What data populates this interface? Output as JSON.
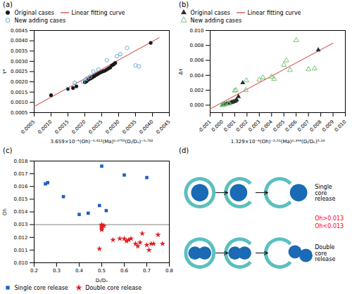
{
  "chart_data": [
    {
      "type": "scatter",
      "title": "(a)",
      "xlabel": "3.659×10⁻⁴(Oh)⁻⁰·⁶¹²(Ma)⁰·⁰⁷⁵⁵(Dᵢ/Dₒ)⁻⁰·⁷⁸²",
      "ylabel": "τ*",
      "xlim": [
        0.0005,
        0.0045
      ],
      "ylim": [
        0.0005,
        0.0045
      ],
      "xticks": [
        0.0005,
        {
          "value": 0.001,
          "label": "0.0010"
        },
        0.0015,
        {
          "value": 0.002,
          "label": "0.0020"
        },
        0.0025,
        {
          "value": 0.003,
          "label": "0.0030"
        },
        0.0035,
        {
          "value": 0.004,
          "label": "0.0040"
        },
        0.0045
      ],
      "yticks": [
        0.0005,
        {
          "value": 0.001,
          "label": "0.0010"
        },
        0.0015,
        {
          "value": 0.002,
          "label": "0.0020"
        },
        0.0025,
        {
          "value": 0.003,
          "label": "0.0030"
        },
        0.0035,
        {
          "value": 0.004,
          "label": "0.0040"
        },
        0.0045
      ],
      "legend": "upper left",
      "series": [
        {
          "name": "Original cases",
          "type": "scatter",
          "marker": "circle",
          "color": "#1a1a1a",
          "x": [
            0.001,
            0.0015,
            0.00165,
            0.00175,
            0.002,
            0.00205,
            0.0021,
            0.00215,
            0.00218,
            0.0022,
            0.00222,
            0.00225,
            0.00228,
            0.0023,
            0.00235,
            0.0024,
            0.00245,
            0.0025,
            0.00255,
            0.0026,
            0.00265,
            0.0027,
            0.00275,
            0.0028,
            0.00285,
            0.00285,
            0.0029,
            0.00395
          ],
          "values": [
            0.00135,
            0.00165,
            0.0017,
            0.00178,
            0.00198,
            0.00202,
            0.0021,
            0.00215,
            0.00218,
            0.0022,
            0.00222,
            0.00225,
            0.00228,
            0.0023,
            0.00235,
            0.0024,
            0.00245,
            0.00248,
            0.00252,
            0.00255,
            0.0026,
            0.00265,
            0.0027,
            0.0028,
            0.00285,
            0.00285,
            0.00292,
            0.0039
          ]
        },
        {
          "name": "Linear fitting curve",
          "type": "line",
          "color": "#e06060",
          "x": [
            0.0005,
            0.0042
          ],
          "values": [
            0.0008,
            0.00415
          ]
        },
        {
          "name": "New adding cases",
          "type": "scatter",
          "marker": "open_circle",
          "color": "#6baed6",
          "x": [
            0.0015,
            0.0017,
            0.00195,
            0.00205,
            0.00215,
            0.00225,
            0.0024,
            0.00265,
            0.00295,
            0.00305,
            0.00325,
            0.0035,
            0.0036
          ],
          "values": [
            0.00165,
            0.00195,
            0.002,
            0.00215,
            0.00225,
            0.0025,
            0.0026,
            0.00305,
            0.00325,
            0.00335,
            0.00365,
            0.0028,
            0.00275
          ]
        }
      ]
    },
    {
      "type": "scatter",
      "title": "(b)",
      "xlabel": "1.329×10⁻⁶(Oh)⁻²·⁵¹(Ma)⁰·³⁹⁸(Dᵢ/Dₒ)⁵·¹⁸",
      "ylabel": "Δτ",
      "xlim": [
        -0.001,
        0.01
      ],
      "ylim": [
        -0.001,
        0.01
      ],
      "xticks": [
        -0.001,
        {
          "value": 0,
          "label": "0.000"
        },
        0.001,
        0.002,
        0.003,
        0.004,
        0.005,
        0.006,
        0.007,
        0.008,
        0.009,
        {
          "value": 0.01,
          "label": "0.010"
        }
      ],
      "yticks": [
        {
          "value": 0,
          "label": "0.000"
        },
        0.002,
        0.004,
        0.006,
        0.008,
        {
          "value": 0.01,
          "label": "0.010"
        }
      ],
      "legend": "upper left",
      "series": [
        {
          "name": "Original cases",
          "type": "scatter",
          "marker": "triangle",
          "color": "#2c2c2c",
          "x": [
            0.0,
            5e-05,
            0.0001,
            0.0002,
            0.0003,
            0.0004,
            0.0005,
            0.0006,
            0.0007,
            0.0008,
            0.0009,
            0.001,
            0.0011,
            0.00115,
            0.0013,
            0.00165,
            0.0078
          ],
          "values": [
            0.0,
            3e-05,
            5e-05,
            0.0001,
            0.00015,
            0.0002,
            0.00025,
            0.0003,
            0.00035,
            0.0004,
            0.00045,
            0.0005,
            0.0006,
            0.00075,
            0.00115,
            0.003,
            0.0074
          ]
        },
        {
          "name": "Linear fitting curve",
          "type": "line",
          "color": "#e06060",
          "x": [
            -0.001,
            0.009
          ],
          "values": [
            -0.0005,
            0.0083
          ]
        },
        {
          "name": "New adding cases",
          "type": "scatter",
          "marker": "open_triangle",
          "color": "#74c476",
          "x": [
            0.0,
            0.0001,
            0.0002,
            0.0005,
            0.00055,
            0.001,
            0.0011,
            0.0019,
            0.00195,
            0.003,
            0.0033,
            0.004,
            0.0042,
            0.005,
            0.0052,
            0.0055,
            0.006,
            0.007,
            0.0075
          ],
          "values": [
            0.0,
            5e-05,
            0.00012,
            0.0002,
            0.00025,
            0.00195,
            0.002,
            0.002,
            0.0033,
            0.0034,
            0.0037,
            0.0038,
            0.0035,
            0.0054,
            0.006,
            0.0047,
            0.0087,
            0.0048,
            0.0049
          ]
        }
      ]
    },
    {
      "type": "scatter",
      "title": "(c)",
      "xlabel": "Dᵢ/Dₒ",
      "ylabel": "Oh",
      "xlim": [
        0.2,
        0.8
      ],
      "ylim": [
        0.01,
        0.018
      ],
      "xticks": [
        0.2,
        0.3,
        0.4,
        0.5,
        0.6,
        0.7,
        0.8
      ],
      "yticks": [
        {
          "value": 0.01,
          "label": "0.010"
        },
        0.011,
        0.012,
        0.013,
        0.014,
        0.015,
        0.016,
        0.017,
        0.018
      ],
      "hline": 0.013,
      "legend": "lower left",
      "series": [
        {
          "name": "Single core release",
          "type": "scatter",
          "marker": "square",
          "color": "#1f5fc4",
          "x": [
            0.25,
            0.26,
            0.33,
            0.4,
            0.44,
            0.49,
            0.5,
            0.52,
            0.6,
            0.7
          ],
          "values": [
            0.0162,
            0.0163,
            0.0152,
            0.0138,
            0.0139,
            0.0145,
            0.0176,
            0.0141,
            0.0169,
            0.0167
          ]
        },
        {
          "name": "Double core release",
          "type": "scatter",
          "marker": "star",
          "color": "#e02020",
          "x": [
            0.49,
            0.5,
            0.5,
            0.5,
            0.5,
            0.5,
            0.51,
            0.55,
            0.58,
            0.6,
            0.61,
            0.62,
            0.63,
            0.65,
            0.66,
            0.67,
            0.68,
            0.7,
            0.71,
            0.72,
            0.73,
            0.75,
            0.77
          ],
          "values": [
            0.0111,
            0.0126,
            0.0127,
            0.0128,
            0.0129,
            0.013,
            0.0129,
            0.0118,
            0.0119,
            0.0119,
            0.0117,
            0.0118,
            0.0119,
            0.0115,
            0.0113,
            0.0116,
            0.0123,
            0.0114,
            0.011,
            0.0115,
            0.0115,
            0.0122,
            0.0115
          ]
        }
      ]
    },
    {
      "type": "diagram",
      "title": "(d)",
      "colors": [
        "#5abfbf",
        "#1a6ab5"
      ],
      "annotations": [
        {
          "text": "Single\ncore\nrelease",
          "color": "black"
        },
        {
          "text": "Oh>0.013",
          "color": "red"
        },
        {
          "text": "Oh<0.013",
          "color": "red"
        },
        {
          "text": "Double\ncore\nrelease",
          "color": "black"
        }
      ]
    }
  ]
}
